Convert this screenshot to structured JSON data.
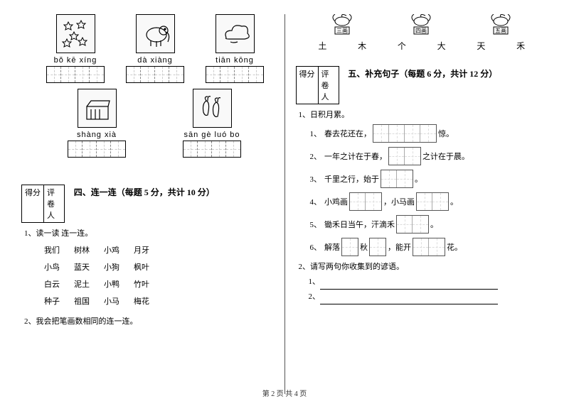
{
  "footer": "第 2 页 共 4 页",
  "left": {
    "pics": [
      {
        "pinyin": "bǒ kē xíng",
        "cells": 4,
        "img": "stars"
      },
      {
        "pinyin": "dà xiàng",
        "cells": 4,
        "img": "elephant"
      },
      {
        "pinyin": "tiān kōng",
        "cells": 4,
        "img": "cloud"
      }
    ],
    "pics2": [
      {
        "pinyin": "shàng xià",
        "cells": 4,
        "img": "books"
      },
      {
        "pinyin": "sān gè luó bo",
        "cells": 4,
        "img": "carrot"
      }
    ],
    "scoreLabels": [
      "得分",
      "评卷人"
    ],
    "section4": {
      "title": "四、连一连（每题 5 分，共计 10 分）",
      "sub1": "1、读一读  连一连。",
      "rows": [
        [
          "我们",
          "树林",
          "小鸡",
          "月牙"
        ],
        [
          "小鸟",
          "蓝天",
          "小狗",
          "枫叶"
        ],
        [
          "白云",
          "泥土",
          "小鸭",
          "竹叶"
        ],
        [
          "种子",
          "祖国",
          "小马",
          "梅花"
        ]
      ],
      "sub2": "2、我会把笔画数相同的连一连。"
    }
  },
  "right": {
    "strokeLabels": [
      "三画",
      "四画",
      "五画"
    ],
    "chars": [
      "土",
      "木",
      "个",
      "大",
      "天",
      "禾"
    ],
    "scoreLabels": [
      "得分",
      "评卷人"
    ],
    "section5": {
      "title": "五、补充句子（每题 6 分，共计 12 分）",
      "sub1": "1、日积月累。",
      "items": [
        {
          "n": "1、",
          "pre": "春去花还在，",
          "boxes": 4,
          "post": "惊。"
        },
        {
          "n": "2、",
          "pre": "一年之计在于春，",
          "boxes": 2,
          "post": "之计在于晨。"
        },
        {
          "n": "3、",
          "pre": "千里之行，始于",
          "boxes": 2,
          "post": "。"
        },
        {
          "n": "4、",
          "pre": "小鸡画",
          "boxes": 2,
          "mid": "，小马画",
          "boxes2": 2,
          "post": "。"
        },
        {
          "n": "5、",
          "pre": "锄禾日当午，汗滴禾",
          "boxes": 2,
          "post": "。"
        },
        {
          "n": "6、",
          "pre": "解落",
          "boxes": 1,
          "mid": "秋",
          "boxes2": 1,
          "mid2": "，能开",
          "boxes3": 2,
          "post": "花。"
        }
      ],
      "sub2": "2、请写两句你收集到的谚语。",
      "blank1": "1、",
      "blank2": "2、"
    }
  }
}
